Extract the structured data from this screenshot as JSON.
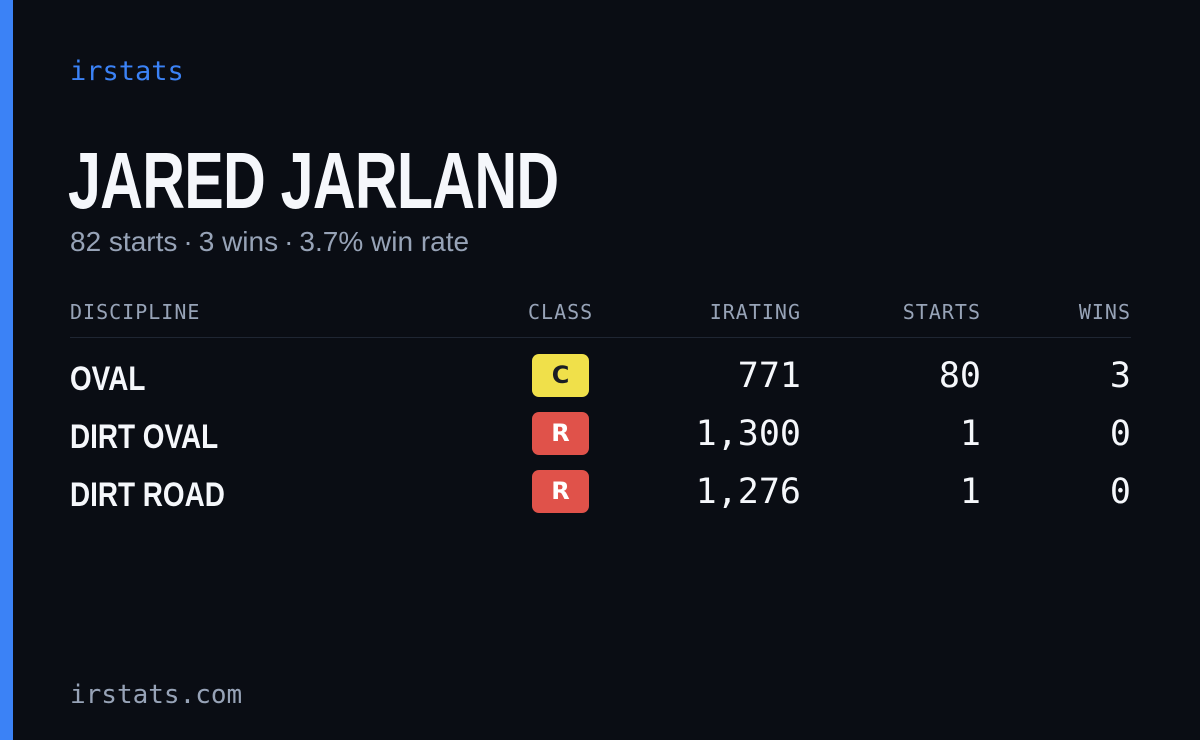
{
  "brand": "irstats",
  "driver": {
    "name": "JARED JARLAND",
    "summary": {
      "starts": "82 starts",
      "wins": "3 wins",
      "win_rate": "3.7% win rate",
      "separator": "·"
    }
  },
  "table": {
    "headers": {
      "discipline": "DISCIPLINE",
      "class": "CLASS",
      "irating": "IRATING",
      "starts": "STARTS",
      "wins": "WINS"
    },
    "rows": [
      {
        "discipline": "OVAL",
        "class": "C",
        "class_bg": "#f0e04a",
        "class_fg": "#1a1d24",
        "irating": "771",
        "starts": "80",
        "wins": "3"
      },
      {
        "discipline": "DIRT OVAL",
        "class": "R",
        "class_bg": "#e0524a",
        "class_fg": "#ffffff",
        "irating": "1,300",
        "starts": "1",
        "wins": "0"
      },
      {
        "discipline": "DIRT ROAD",
        "class": "R",
        "class_bg": "#e0524a",
        "class_fg": "#ffffff",
        "irating": "1,276",
        "starts": "1",
        "wins": "0"
      }
    ]
  },
  "footer": {
    "domain": "irstats.com"
  },
  "colors": {
    "background": "#0a0d14",
    "accent": "#3b82f6",
    "text": "#f5f7fb",
    "muted": "#97a3b7"
  }
}
